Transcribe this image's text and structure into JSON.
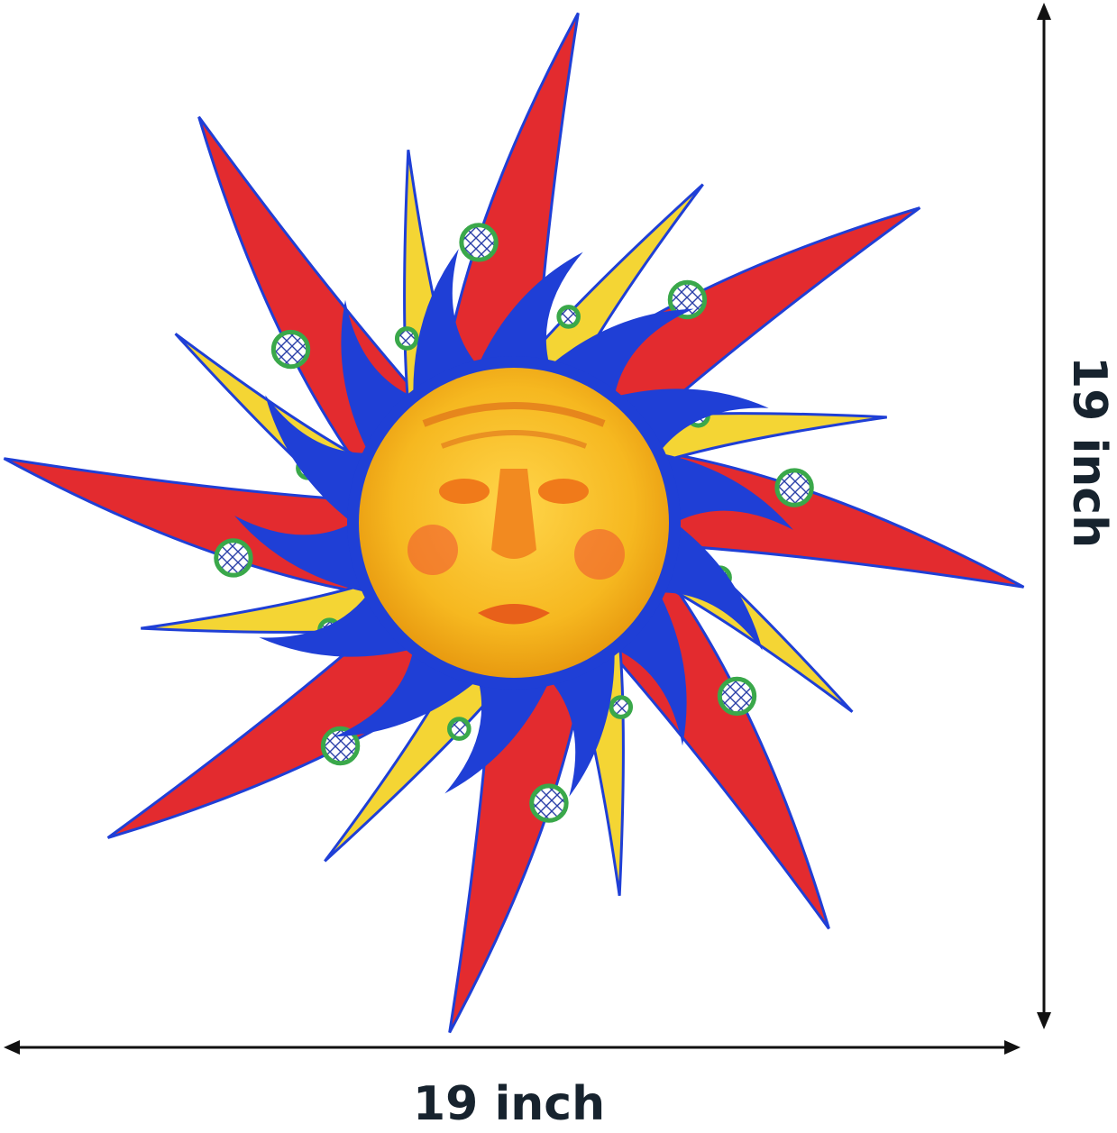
{
  "product": {
    "width_label": "19 inch",
    "height_label": "19 inch"
  },
  "colors": {
    "ray_red": "#e32b2f",
    "ray_yellow": "#f4d534",
    "flame_blue": "#1f3fd6",
    "face_yellow": "#f6b820",
    "face_orange": "#f07a1a",
    "leaf_green": "#3aa84a",
    "text_dark": "#17232e"
  }
}
